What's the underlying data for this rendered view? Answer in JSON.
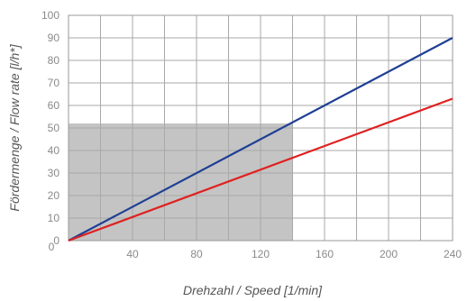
{
  "chart_data": {
    "type": "line",
    "title": "",
    "xlabel": "Drehzahl / Speed [1/min]",
    "ylabel": "Fördermenge / Flow rate [l/h*]",
    "xlim": [
      0,
      240
    ],
    "ylim": [
      0,
      100
    ],
    "x_ticks": [
      {
        "value": 40,
        "label": "40"
      },
      {
        "value": 80,
        "label": "80"
      },
      {
        "value": 120,
        "label": "120"
      },
      {
        "value": 160,
        "label": "160"
      },
      {
        "value": 200,
        "label": "200"
      },
      {
        "value": 240,
        "label": "240"
      }
    ],
    "x_origin_label": "0",
    "y_ticks": [
      {
        "value": 10,
        "label": "10"
      },
      {
        "value": 20,
        "label": "20"
      },
      {
        "value": 30,
        "label": "30"
      },
      {
        "value": 40,
        "label": "40"
      },
      {
        "value": 50,
        "label": "50"
      },
      {
        "value": 60,
        "label": "60"
      },
      {
        "value": 70,
        "label": "70"
      },
      {
        "value": 80,
        "label": "80"
      },
      {
        "value": 90,
        "label": "90"
      },
      {
        "value": 100,
        "label": "100"
      }
    ],
    "y_origin_label": "0",
    "grid": {
      "on": true,
      "x_step": 20,
      "y_step": 10
    },
    "shaded_region": {
      "x": [
        0,
        140
      ],
      "y": [
        0,
        52
      ],
      "color": "#c4c4c4"
    },
    "series": [
      {
        "color": "#1f3f95",
        "x": [
          0,
          240
        ],
        "y": [
          0,
          90
        ]
      },
      {
        "color": "#e02020",
        "x": [
          0,
          240
        ],
        "y": [
          0,
          63
        ]
      }
    ]
  }
}
